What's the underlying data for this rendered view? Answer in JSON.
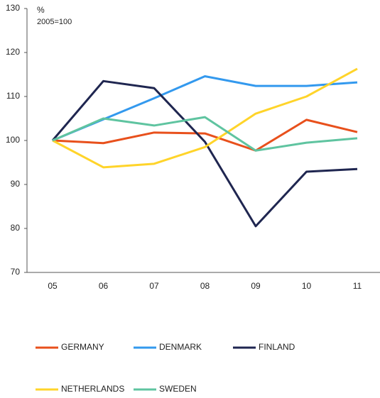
{
  "chart_data": {
    "type": "line",
    "annotations": [
      "%",
      "2005=100"
    ],
    "categories": [
      "05",
      "06",
      "07",
      "08",
      "09",
      "10",
      "11"
    ],
    "series": [
      {
        "name": "GERMANY",
        "color": "#e8501c",
        "values": [
          100,
          99.4,
          101.8,
          101.6,
          97.7,
          104.7,
          101.9
        ]
      },
      {
        "name": "DENMARK",
        "color": "#3399ee",
        "values": [
          100,
          104.8,
          109.6,
          114.6,
          112.4,
          112.4,
          113.2
        ]
      },
      {
        "name": "FINLAND",
        "color": "#1f2650",
        "values": [
          100,
          113.5,
          111.9,
          99.7,
          80.5,
          92.9,
          93.5
        ]
      },
      {
        "name": "NETHERLANDS",
        "color": "#ffd42a",
        "values": [
          100,
          93.9,
          94.7,
          98.5,
          106.1,
          110,
          116.3
        ]
      },
      {
        "name": "SWEDEN",
        "color": "#5fc4a0",
        "values": [
          100,
          105,
          103.4,
          105.3,
          97.7,
          99.5,
          100.5
        ]
      }
    ],
    "ylim": [
      70,
      130
    ],
    "yticks": [
      70,
      80,
      90,
      100,
      110,
      120,
      130
    ],
    "grid": false
  }
}
